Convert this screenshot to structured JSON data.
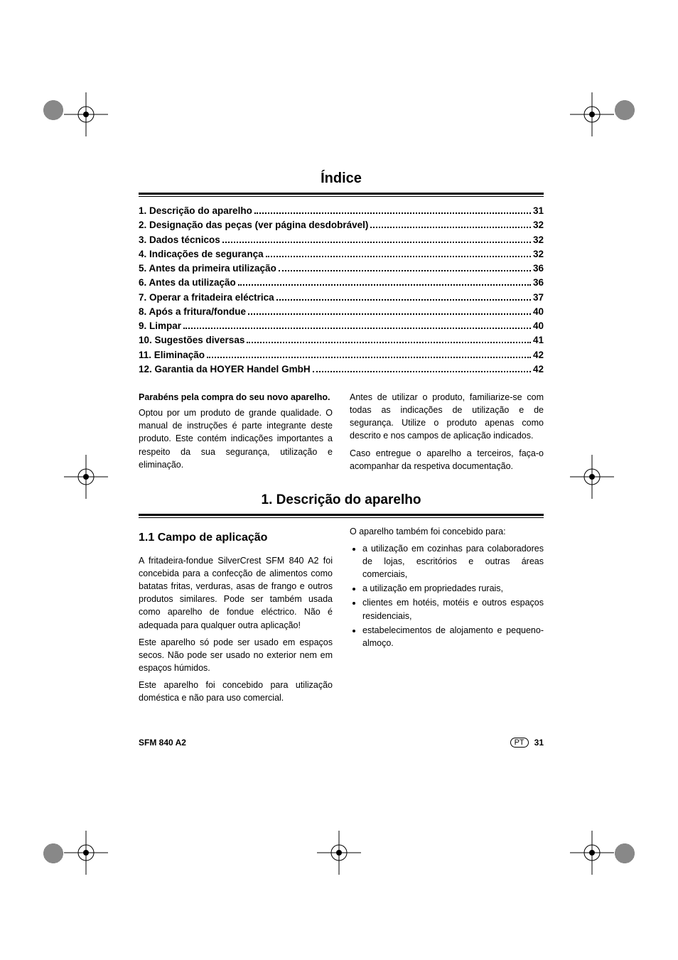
{
  "title": "Índice",
  "toc": [
    {
      "label": "1. Descrição do aparelho",
      "page": "31"
    },
    {
      "label": "2. Designação das peças (ver página desdobrável)",
      "page": "32"
    },
    {
      "label": "3. Dados técnicos",
      "page": "32"
    },
    {
      "label": "4. Indicações de segurança",
      "page": "32"
    },
    {
      "label": "5. Antes da primeira utilização",
      "page": "36"
    },
    {
      "label": "6. Antes da utilização",
      "page": "36"
    },
    {
      "label": "7. Operar a fritadeira eléctrica",
      "page": "37"
    },
    {
      "label": "8. Após a fritura/fondue",
      "page": "40"
    },
    {
      "label": "9. Limpar",
      "page": "40"
    },
    {
      "label": "10. Sugestões diversas",
      "page": "41"
    },
    {
      "label": "11. Eliminação",
      "page": "42"
    },
    {
      "label": "12. Garantia da HOYER Handel GmbH",
      "page": "42"
    }
  ],
  "intro": {
    "boldline": "Parabéns pela compra do seu novo aparelho.",
    "left_p1": "Optou por um produto de grande qualidade. O manual de instruções é parte integrante deste produto. Este contém indicações importantes a respeito da sua segurança, utilização e eliminação.",
    "right_p1": "Antes de utilizar o produto, familiarize-se com todas as indicações de utilização e de segurança. Utilize o produto apenas como descrito e nos campos de aplicação indicados.",
    "right_p2": "Caso entregue o aparelho a terceiros, faça-o acompanhar da respetiva documentação."
  },
  "section1": {
    "title": "1. Descrição do aparelho",
    "subsection": "1.1 Campo de aplicação",
    "left_p1": "A fritadeira-fondue SilverCrest SFM 840 A2 foi concebida para a confecção de alimentos como batatas fritas, verduras, asas de frango e outros produtos similares. Pode ser também usada como aparelho de fondue eléctrico. Não é adequada para qualquer outra aplicação!",
    "left_p2": "Este aparelho só pode ser usado em espaços secos. Não pode ser usado no exterior nem em espaços húmidos.",
    "left_p3": "Este aparelho foi concebido para utilização doméstica e não para uso comercial.",
    "right_intro": "O aparelho também foi concebido para:",
    "bullets": [
      "a utilização em cozinhas para colaboradores de lojas, escritórios e outras áreas comerciais,",
      "a utilização em propriedades rurais,",
      "clientes em hotéis, motéis e outros espaços residenciais,",
      "estabelecimentos de alojamento e pequeno-almoço."
    ]
  },
  "footer": {
    "model": "SFM 840 A2",
    "lang": "PT",
    "pagenum": "31"
  },
  "colors": {
    "text": "#000000",
    "background": "#ffffff",
    "regmark_gray": "#888888"
  }
}
